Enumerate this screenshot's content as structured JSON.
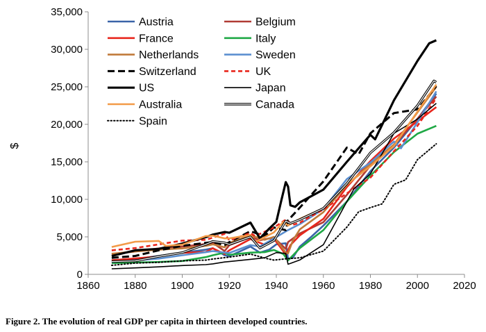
{
  "caption": "Figure 2. The evolution of real GDP per capita in thirteen developed countries.",
  "chart_data": {
    "type": "line",
    "title": "",
    "xlabel": "",
    "ylabel": "$",
    "xlim": [
      1860,
      2020
    ],
    "ylim": [
      0,
      35000
    ],
    "x_ticks": [
      "1860",
      "1880",
      "1900",
      "1920",
      "1940",
      "1960",
      "1980",
      "2000",
      "2020"
    ],
    "y_ticks": [
      "0",
      "5,000",
      "10,000",
      "15,000",
      "20,000",
      "25,000",
      "30,000",
      "35,000"
    ],
    "grid": false,
    "legend": "top-left, two columns",
    "series": [
      {
        "name": "Austria",
        "color": "#3a64a8",
        "style": "solid",
        "points": [
          [
            1870,
            1860
          ],
          [
            1880,
            2050
          ],
          [
            1890,
            2450
          ],
          [
            1900,
            2880
          ],
          [
            1910,
            3300
          ],
          [
            1913,
            3480
          ],
          [
            1918,
            2550
          ],
          [
            1920,
            2420
          ],
          [
            1929,
            3700
          ],
          [
            1933,
            2900
          ],
          [
            1937,
            3300
          ],
          [
            1940,
            4000
          ],
          [
            1944,
            4150
          ],
          [
            1945,
            2050
          ],
          [
            1947,
            2200
          ],
          [
            1950,
            3700
          ],
          [
            1955,
            5050
          ],
          [
            1960,
            6500
          ],
          [
            1970,
            9700
          ],
          [
            1980,
            13750
          ],
          [
            1990,
            16900
          ],
          [
            2000,
            20700
          ],
          [
            2008,
            24100
          ]
        ]
      },
      {
        "name": "Belgium",
        "color": "#b03b34",
        "style": "solid",
        "points": [
          [
            1870,
            2700
          ],
          [
            1880,
            3050
          ],
          [
            1890,
            3450
          ],
          [
            1900,
            3700
          ],
          [
            1910,
            4050
          ],
          [
            1913,
            4200
          ],
          [
            1918,
            3100
          ],
          [
            1920,
            3900
          ],
          [
            1929,
            4950
          ],
          [
            1933,
            4550
          ],
          [
            1937,
            4800
          ],
          [
            1940,
            4600
          ],
          [
            1944,
            3400
          ],
          [
            1945,
            4300
          ],
          [
            1950,
            5450
          ],
          [
            1960,
            6950
          ],
          [
            1970,
            10600
          ],
          [
            1980,
            14500
          ],
          [
            1990,
            17200
          ],
          [
            2000,
            20750
          ],
          [
            2008,
            23700
          ]
        ]
      },
      {
        "name": "France",
        "color": "#e8261c",
        "style": "solid",
        "points": [
          [
            1870,
            1880
          ],
          [
            1880,
            2120
          ],
          [
            1890,
            2380
          ],
          [
            1900,
            2880
          ],
          [
            1910,
            2980
          ],
          [
            1913,
            3480
          ],
          [
            1918,
            2700
          ],
          [
            1920,
            3200
          ],
          [
            1929,
            4700
          ],
          [
            1935,
            3950
          ],
          [
            1939,
            4750
          ],
          [
            1944,
            2650
          ],
          [
            1946,
            3900
          ],
          [
            1950,
            5200
          ],
          [
            1960,
            7400
          ],
          [
            1970,
            11650
          ],
          [
            1980,
            15100
          ],
          [
            1990,
            18100
          ],
          [
            2000,
            20400
          ],
          [
            2008,
            22300
          ]
        ]
      },
      {
        "name": "Italy",
        "color": "#1fa845",
        "style": "solid",
        "points": [
          [
            1870,
            1500
          ],
          [
            1880,
            1580
          ],
          [
            1890,
            1650
          ],
          [
            1900,
            1780
          ],
          [
            1910,
            2300
          ],
          [
            1913,
            2550
          ],
          [
            1918,
            2900
          ],
          [
            1920,
            2600
          ],
          [
            1929,
            2900
          ],
          [
            1935,
            2950
          ],
          [
            1939,
            3250
          ],
          [
            1943,
            2700
          ],
          [
            1945,
            1850
          ],
          [
            1950,
            3500
          ],
          [
            1960,
            5900
          ],
          [
            1970,
            9700
          ],
          [
            1980,
            13150
          ],
          [
            1990,
            16300
          ],
          [
            2000,
            18750
          ],
          [
            2008,
            19800
          ]
        ]
      },
      {
        "name": "Netherlands",
        "color": "#c07a3a",
        "style": "solid",
        "points": [
          [
            1870,
            2750
          ],
          [
            1880,
            3050
          ],
          [
            1890,
            3300
          ],
          [
            1900,
            3450
          ],
          [
            1910,
            3800
          ],
          [
            1913,
            4000
          ],
          [
            1918,
            3600
          ],
          [
            1920,
            4200
          ],
          [
            1929,
            5200
          ],
          [
            1935,
            4600
          ],
          [
            1939,
            5000
          ],
          [
            1944,
            2900
          ],
          [
            1945,
            2800
          ],
          [
            1947,
            4500
          ],
          [
            1950,
            6000
          ],
          [
            1960,
            8300
          ],
          [
            1970,
            11900
          ],
          [
            1980,
            14700
          ],
          [
            1990,
            17300
          ],
          [
            2000,
            21600
          ],
          [
            2008,
            25000
          ]
        ]
      },
      {
        "name": "Sweden",
        "color": "#5b8fd0",
        "style": "solid",
        "points": [
          [
            1870,
            1650
          ],
          [
            1880,
            1850
          ],
          [
            1890,
            2100
          ],
          [
            1900,
            2550
          ],
          [
            1910,
            2950
          ],
          [
            1913,
            3100
          ],
          [
            1918,
            2900
          ],
          [
            1920,
            2850
          ],
          [
            1929,
            3900
          ],
          [
            1933,
            3700
          ],
          [
            1939,
            4800
          ],
          [
            1945,
            5900
          ],
          [
            1950,
            6700
          ],
          [
            1960,
            8700
          ],
          [
            1970,
            12700
          ],
          [
            1980,
            14900
          ],
          [
            1990,
            17700
          ],
          [
            1993,
            16800
          ],
          [
            2000,
            20300
          ],
          [
            2008,
            24400
          ]
        ]
      },
      {
        "name": "Switzerland",
        "color": "#000000",
        "style": "dashed",
        "points": [
          [
            1870,
            2200
          ],
          [
            1880,
            2450
          ],
          [
            1890,
            3200
          ],
          [
            1900,
            3800
          ],
          [
            1910,
            4200
          ],
          [
            1913,
            4300
          ],
          [
            1918,
            3900
          ],
          [
            1920,
            4300
          ],
          [
            1929,
            5750
          ],
          [
            1935,
            5100
          ],
          [
            1939,
            6250
          ],
          [
            1944,
            5900
          ],
          [
            1945,
            7200
          ],
          [
            1950,
            8900
          ],
          [
            1960,
            12400
          ],
          [
            1970,
            16900
          ],
          [
            1975,
            16000
          ],
          [
            1980,
            18800
          ],
          [
            1990,
            21500
          ],
          [
            2000,
            22000
          ],
          [
            2008,
            25100
          ]
        ]
      },
      {
        "name": "UK",
        "color": "#e8261c",
        "style": "dashed",
        "points": [
          [
            1870,
            3200
          ],
          [
            1880,
            3500
          ],
          [
            1890,
            4000
          ],
          [
            1900,
            4500
          ],
          [
            1910,
            4600
          ],
          [
            1913,
            4900
          ],
          [
            1918,
            5400
          ],
          [
            1920,
            4550
          ],
          [
            1929,
            5500
          ],
          [
            1931,
            5100
          ],
          [
            1939,
            6250
          ],
          [
            1944,
            7300
          ],
          [
            1947,
            6600
          ],
          [
            1950,
            6900
          ],
          [
            1960,
            8650
          ],
          [
            1970,
            10800
          ],
          [
            1980,
            12900
          ],
          [
            1990,
            16400
          ],
          [
            2000,
            19800
          ],
          [
            2008,
            23500
          ]
        ]
      },
      {
        "name": "US",
        "color": "#000000",
        "style": "thick",
        "points": [
          [
            1870,
            2450
          ],
          [
            1880,
            3200
          ],
          [
            1890,
            3400
          ],
          [
            1900,
            4100
          ],
          [
            1910,
            4950
          ],
          [
            1913,
            5300
          ],
          [
            1918,
            5650
          ],
          [
            1920,
            5550
          ],
          [
            1929,
            6900
          ],
          [
            1933,
            4800
          ],
          [
            1937,
            6100
          ],
          [
            1940,
            7000
          ],
          [
            1942,
            9700
          ],
          [
            1944,
            12300
          ],
          [
            1945,
            11700
          ],
          [
            1946,
            9200
          ],
          [
            1948,
            9000
          ],
          [
            1950,
            9600
          ],
          [
            1960,
            11300
          ],
          [
            1970,
            15000
          ],
          [
            1980,
            18600
          ],
          [
            1982,
            18000
          ],
          [
            1990,
            23200
          ],
          [
            2000,
            28450
          ],
          [
            2005,
            30800
          ],
          [
            2008,
            31200
          ]
        ]
      },
      {
        "name": "Japan",
        "color": "#000000",
        "style": "solid",
        "points": [
          [
            1870,
            740
          ],
          [
            1880,
            860
          ],
          [
            1890,
            1000
          ],
          [
            1900,
            1180
          ],
          [
            1910,
            1300
          ],
          [
            1913,
            1400
          ],
          [
            1918,
            1650
          ],
          [
            1920,
            1700
          ],
          [
            1929,
            2000
          ],
          [
            1935,
            2200
          ],
          [
            1940,
            2900
          ],
          [
            1944,
            2800
          ],
          [
            1945,
            1350
          ],
          [
            1946,
            1450
          ],
          [
            1950,
            1920
          ],
          [
            1960,
            3950
          ],
          [
            1970,
            9700
          ],
          [
            1973,
            11400
          ],
          [
            1980,
            13400
          ],
          [
            1990,
            18800
          ],
          [
            2000,
            20700
          ],
          [
            2008,
            22800
          ]
        ]
      },
      {
        "name": "Australia",
        "color": "#f29a48",
        "style": "solid",
        "points": [
          [
            1870,
            3650
          ],
          [
            1880,
            4350
          ],
          [
            1890,
            4450
          ],
          [
            1893,
            3800
          ],
          [
            1900,
            3950
          ],
          [
            1910,
            5100
          ],
          [
            1913,
            5150
          ],
          [
            1918,
            4800
          ],
          [
            1920,
            4800
          ],
          [
            1929,
            5250
          ],
          [
            1931,
            4300
          ],
          [
            1939,
            5600
          ],
          [
            1943,
            7000
          ],
          [
            1945,
            6500
          ],
          [
            1950,
            7400
          ],
          [
            1960,
            8800
          ],
          [
            1970,
            12000
          ],
          [
            1980,
            14400
          ],
          [
            1990,
            17100
          ],
          [
            2000,
            21700
          ],
          [
            2008,
            25300
          ]
        ]
      },
      {
        "name": "Canada",
        "color": "#000000",
        "style": "double",
        "points": [
          [
            1870,
            1700
          ],
          [
            1880,
            1800
          ],
          [
            1890,
            2400
          ],
          [
            1900,
            2900
          ],
          [
            1910,
            4000
          ],
          [
            1913,
            4400
          ],
          [
            1918,
            4200
          ],
          [
            1920,
            4000
          ],
          [
            1929,
            5000
          ],
          [
            1933,
            3500
          ],
          [
            1939,
            4500
          ],
          [
            1944,
            7100
          ],
          [
            1946,
            6800
          ],
          [
            1950,
            7300
          ],
          [
            1960,
            8800
          ],
          [
            1970,
            12100
          ],
          [
            1980,
            16200
          ],
          [
            1990,
            18900
          ],
          [
            2000,
            22500
          ],
          [
            2007,
            25800
          ],
          [
            2008,
            25600
          ]
        ]
      },
      {
        "name": "Spain",
        "color": "#000000",
        "style": "dotted",
        "points": [
          [
            1870,
            1200
          ],
          [
            1880,
            1500
          ],
          [
            1890,
            1600
          ],
          [
            1900,
            1800
          ],
          [
            1910,
            1900
          ],
          [
            1913,
            2050
          ],
          [
            1920,
            2300
          ],
          [
            1929,
            2700
          ],
          [
            1936,
            2100
          ],
          [
            1939,
            1900
          ],
          [
            1945,
            2100
          ],
          [
            1950,
            2200
          ],
          [
            1960,
            3100
          ],
          [
            1970,
            6300
          ],
          [
            1975,
            8350
          ],
          [
            1980,
            8900
          ],
          [
            1985,
            9400
          ],
          [
            1990,
            12000
          ],
          [
            1995,
            12600
          ],
          [
            2000,
            15300
          ],
          [
            2008,
            17400
          ]
        ]
      }
    ]
  }
}
